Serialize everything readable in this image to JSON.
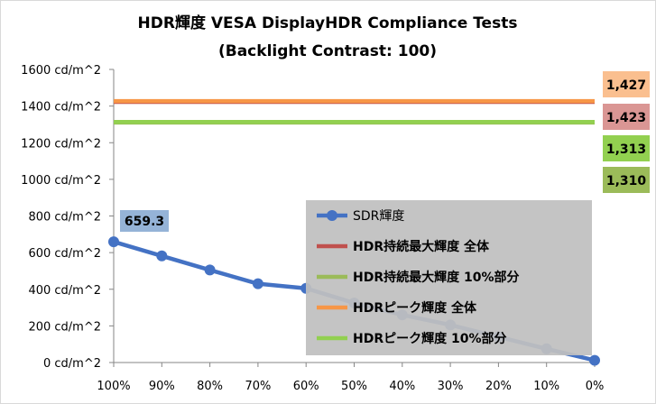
{
  "chart_data": {
    "type": "line",
    "title": "HDR輝度 VESA DisplayHDR Compliance Tests",
    "subtitle": "(Backlight Contrast: 100)",
    "xlabel": "",
    "ylabel": "",
    "categories": [
      "100%",
      "90%",
      "80%",
      "70%",
      "60%",
      "50%",
      "40%",
      "30%",
      "20%",
      "10%",
      "0%"
    ],
    "y_ticks": [
      "0 cd/m^2",
      "200 cd/m^2",
      "400 cd/m^2",
      "600 cd/m^2",
      "800 cd/m^2",
      "1000 cd/m^2",
      "1200 cd/m^2",
      "1400 cd/m^2",
      "1600 cd/m^2"
    ],
    "ylim": [
      0,
      1600
    ],
    "grid": false,
    "legend_position": "bottom-right",
    "series": [
      {
        "name": "SDR輝度",
        "kind": "line-marker",
        "color": "#4472C4",
        "values": [
          659.3,
          582,
          505,
          430,
          405,
          325,
          260,
          205,
          140,
          75,
          12
        ]
      },
      {
        "name": "HDR持続最大輝度 全体",
        "kind": "hline",
        "color": "#C0504D",
        "value": 1423
      },
      {
        "name": "HDR持続最大輝度 10%部分",
        "kind": "hline",
        "color": "#9BBB59",
        "value": 1310
      },
      {
        "name": "HDRピーク輝度 全体",
        "kind": "hline",
        "color": "#F79646",
        "value": 1427
      },
      {
        "name": "HDRピーク輝度 10%部分",
        "kind": "hline",
        "color": "#92D050",
        "value": 1313
      }
    ],
    "data_labels": [
      {
        "text": "659.3",
        "color": "#95B3D7"
      },
      {
        "text": "1,427",
        "color": "#FABF8F"
      },
      {
        "text": "1,423",
        "color": "#DA9694"
      },
      {
        "text": "1,313",
        "color": "#92D050"
      },
      {
        "text": "1,310",
        "color": "#9BBB59"
      }
    ]
  }
}
